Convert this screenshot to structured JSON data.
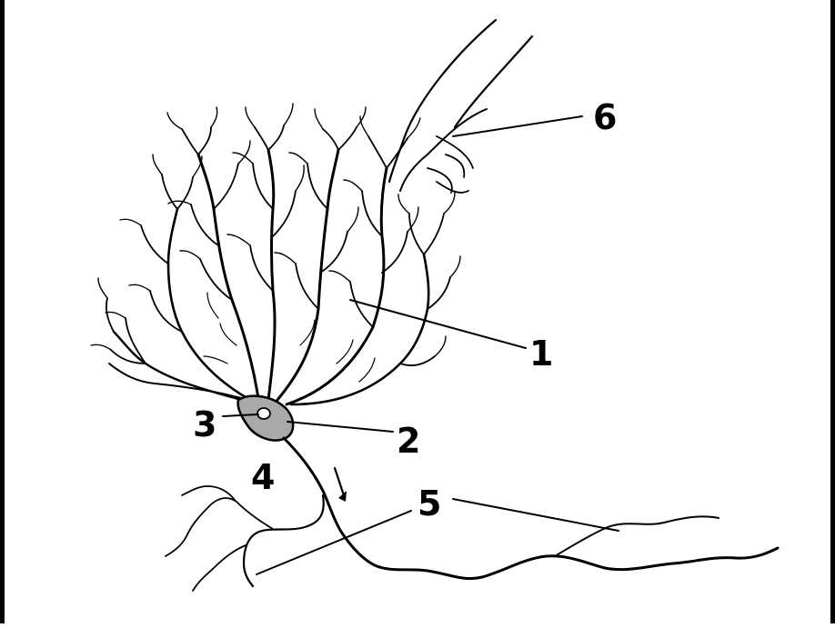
{
  "diagram": {
    "labels": [
      {
        "id": "label-1",
        "text": "1"
      },
      {
        "id": "label-2",
        "text": "2"
      },
      {
        "id": "label-3",
        "text": "3"
      },
      {
        "id": "label-4",
        "text": "4"
      },
      {
        "id": "label-5",
        "text": "5"
      },
      {
        "id": "label-6",
        "text": "6"
      }
    ],
    "colors": {
      "ink": "#000000",
      "soma_fill": "#a9a9a9",
      "background": "#ffffff"
    }
  }
}
